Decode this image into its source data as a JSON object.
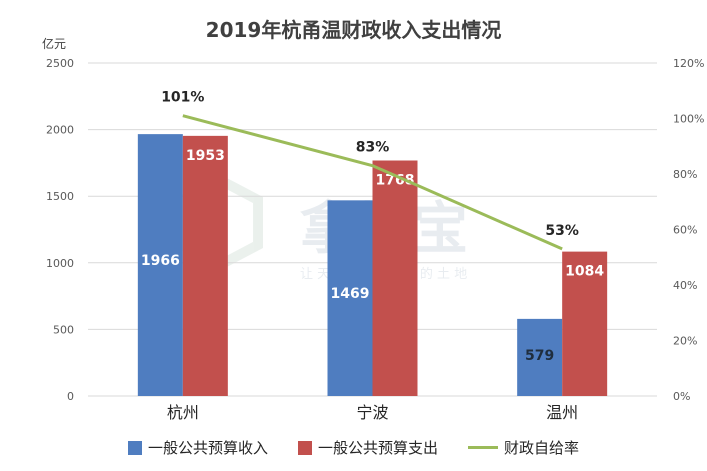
{
  "title": "2019年杭甬温财政收入支出情况",
  "unit_label": "亿元",
  "watermark": {
    "logo_text": "拿地宝",
    "tagline": "让 天 下 没 有 难 拿 的 土 地"
  },
  "colors": {
    "income": "#4f7dc0",
    "expense": "#c2504d",
    "ratio": "#9bbb59",
    "grid": "#d9d9d9",
    "axis_text": "#595959"
  },
  "chart_data": {
    "type": "bar",
    "categories": [
      "杭州",
      "宁波",
      "温州"
    ],
    "series": [
      {
        "name": "一般公共预算收入",
        "values": [
          1966,
          1469,
          579
        ],
        "labels": [
          "1966",
          "1469",
          "579"
        ]
      },
      {
        "name": "一般公共预算支出",
        "values": [
          1953,
          1768,
          1084
        ],
        "labels": [
          "1953",
          "1768",
          "1084"
        ]
      }
    ],
    "line_series": {
      "name": "财政自给率",
      "values": [
        101,
        83,
        53
      ],
      "labels": [
        "101%",
        "83%",
        "53%"
      ],
      "axis": "right"
    },
    "ylim": [
      0,
      2500
    ],
    "yticks": [
      "0",
      "500",
      "1000",
      "1500",
      "2000",
      "2500"
    ],
    "y2lim": [
      0,
      120
    ],
    "y2ticks": [
      "0%",
      "20%",
      "40%",
      "60%",
      "80%",
      "100%",
      "120%"
    ],
    "ylabel": "亿元",
    "grid": true,
    "legend_position": "bottom"
  }
}
